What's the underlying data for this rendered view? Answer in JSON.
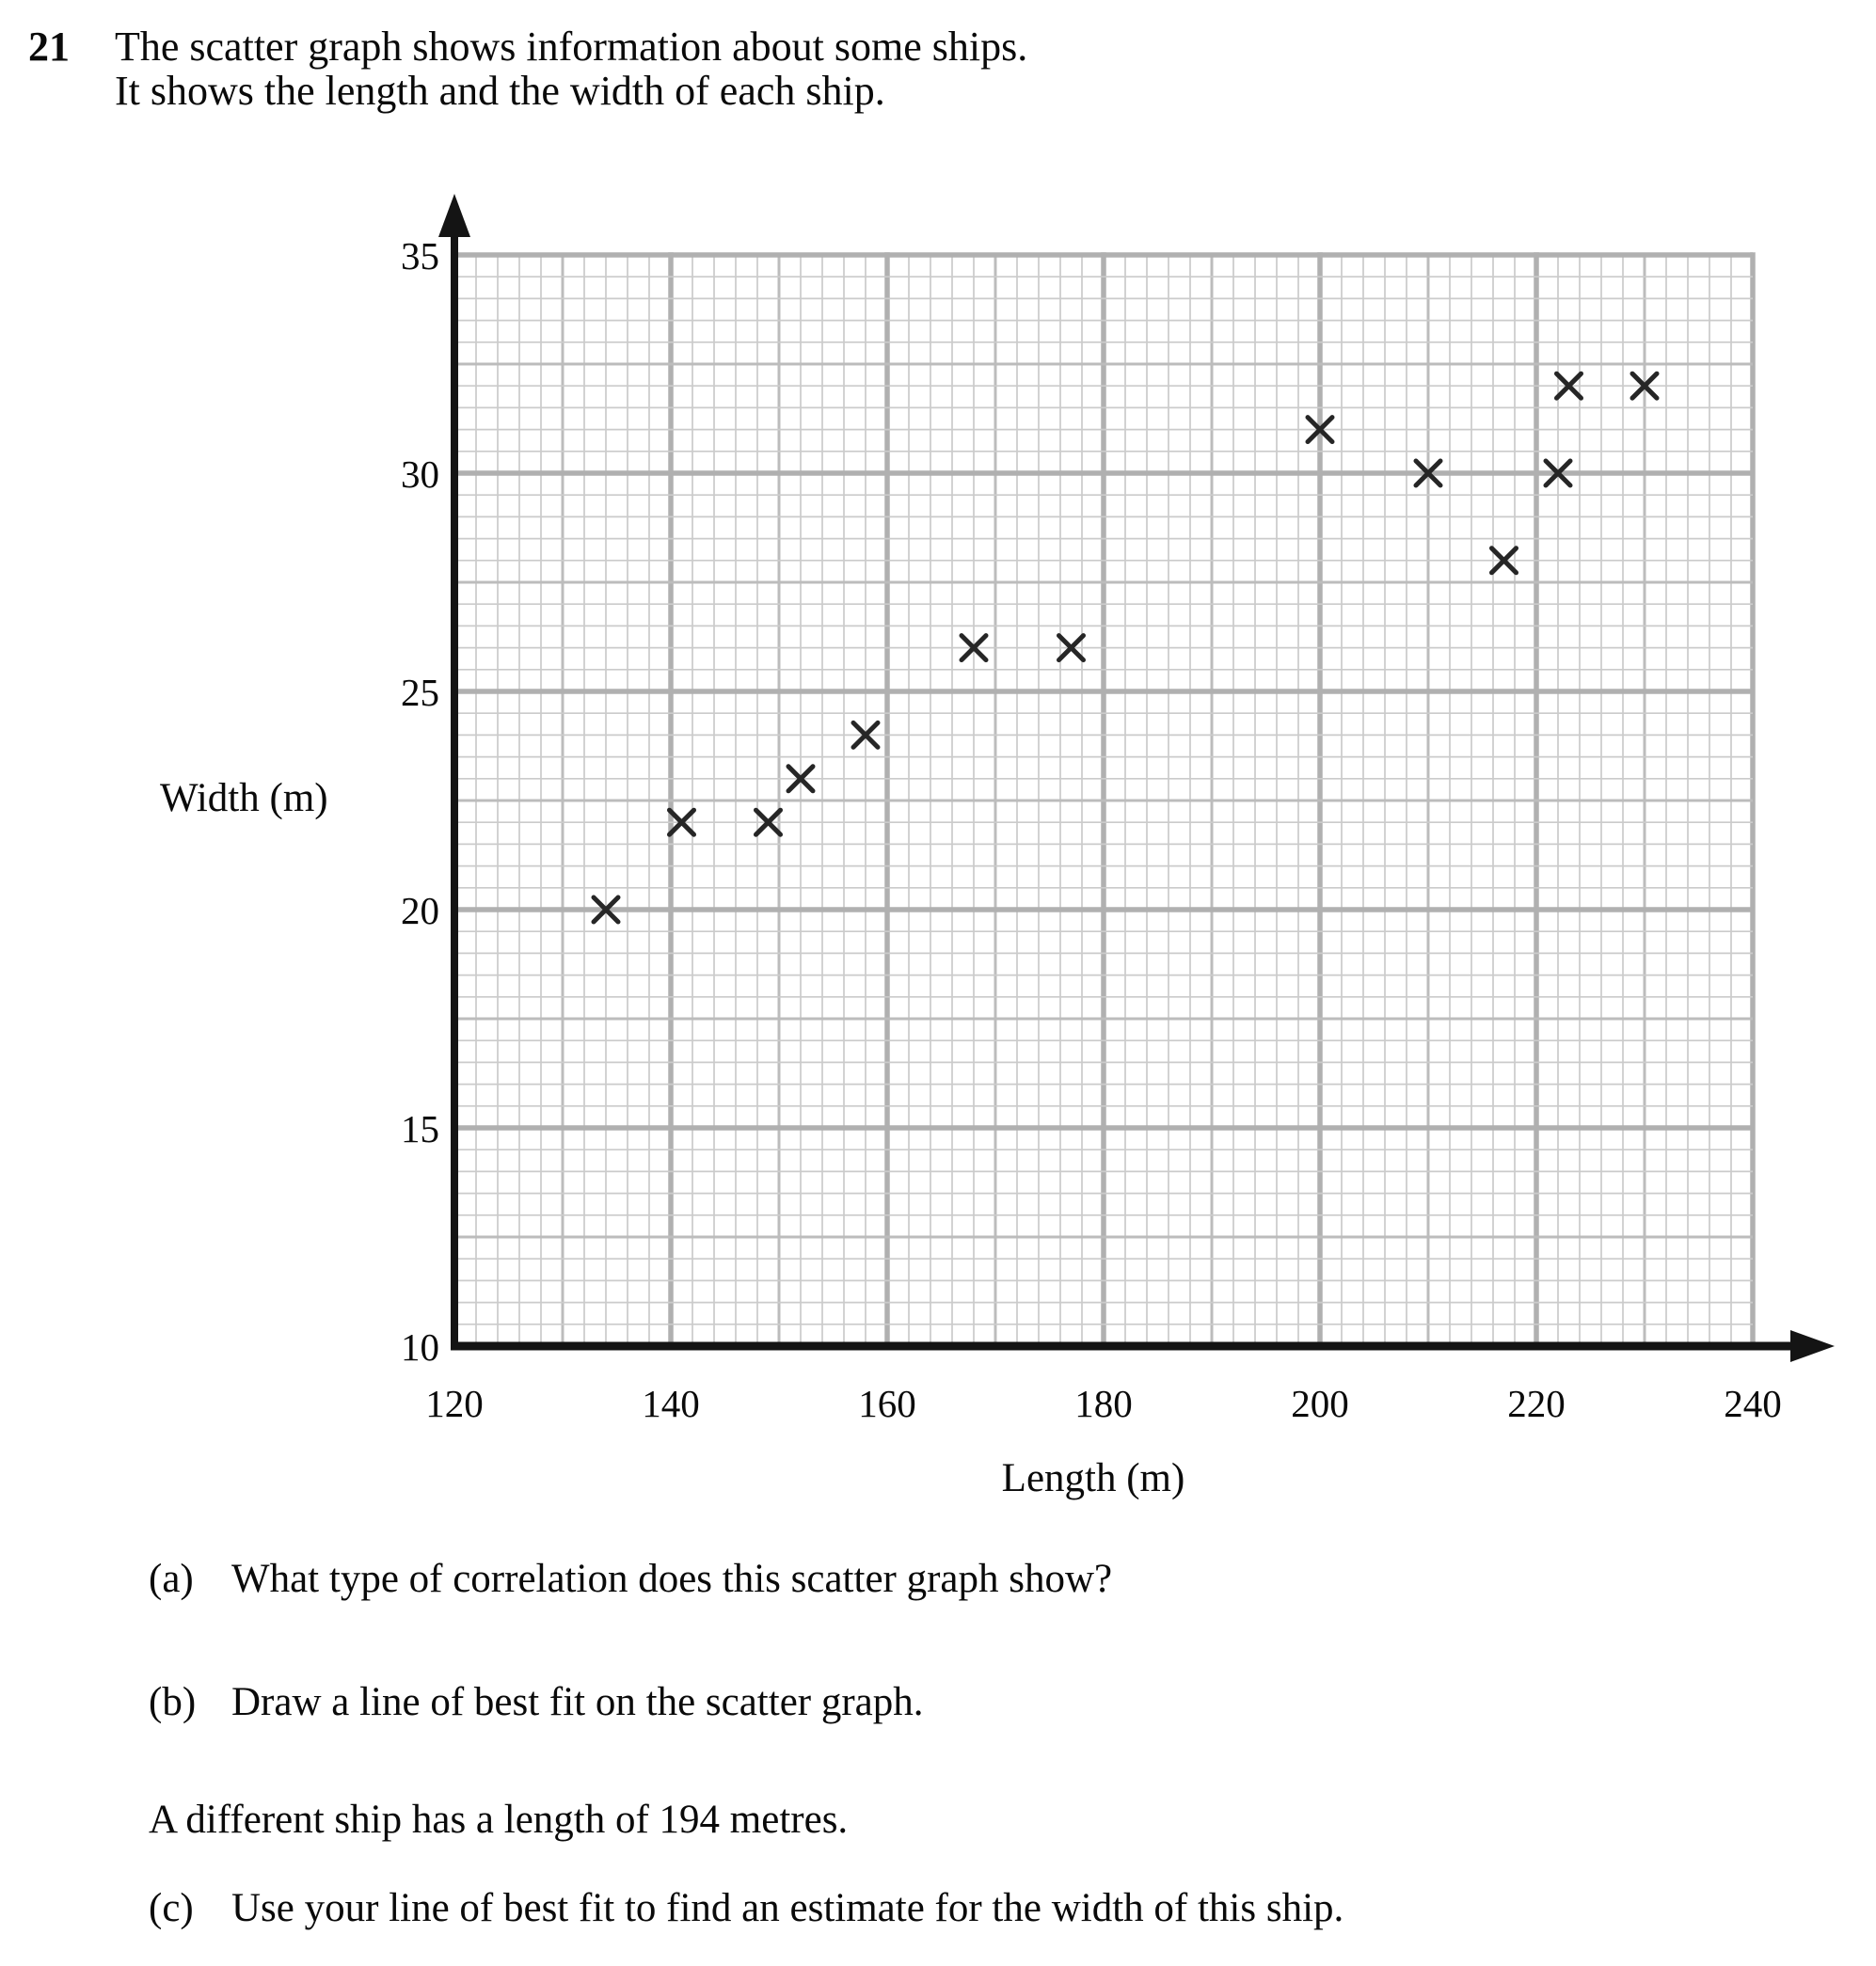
{
  "header": {
    "question_number": "21",
    "intro_line1": "The scatter graph shows information about some ships.",
    "intro_line2": "It shows the length and the width of each ship."
  },
  "chart_data": {
    "type": "scatter",
    "title": "",
    "xlabel": "Length (m)",
    "ylabel": "Width (m)",
    "xlim": [
      120,
      240
    ],
    "ylim": [
      10,
      35
    ],
    "x_ticks": [
      120,
      140,
      160,
      180,
      200,
      220,
      240
    ],
    "y_ticks": [
      10,
      15,
      20,
      25,
      30,
      35
    ],
    "x_minor_step": 2,
    "x_medium_step": 10,
    "x_major_step": 20,
    "y_minor_step": 0.5,
    "y_medium_step": 2.5,
    "y_major_step": 5,
    "grid": true,
    "legend": false,
    "marker": "x",
    "points": [
      [
        134,
        20
      ],
      [
        141,
        22
      ],
      [
        149,
        22
      ],
      [
        152,
        23
      ],
      [
        158,
        24
      ],
      [
        168,
        26
      ],
      [
        177,
        26
      ],
      [
        200,
        31
      ],
      [
        210,
        30
      ],
      [
        217,
        28
      ],
      [
        222,
        30
      ],
      [
        223,
        32
      ],
      [
        230,
        32
      ]
    ]
  },
  "questions": {
    "part_a_label": "(a)",
    "part_a_text": "What type of correlation does this scatter graph show?",
    "part_b_label": "(b)",
    "part_b_text": "Draw a line of best fit on the scatter graph.",
    "statement": "A different ship has a length of 194 metres.",
    "part_c_label": "(c)",
    "part_c_text": "Use your line of best fit to find an estimate for the width of this ship."
  },
  "colors": {
    "grid_minor": "#cbcbcb",
    "grid_medium": "#bcbcbc",
    "grid_major": "#b0b0b0",
    "axis": "#141414",
    "marker": "#262626",
    "text": "#0a0a0a"
  }
}
